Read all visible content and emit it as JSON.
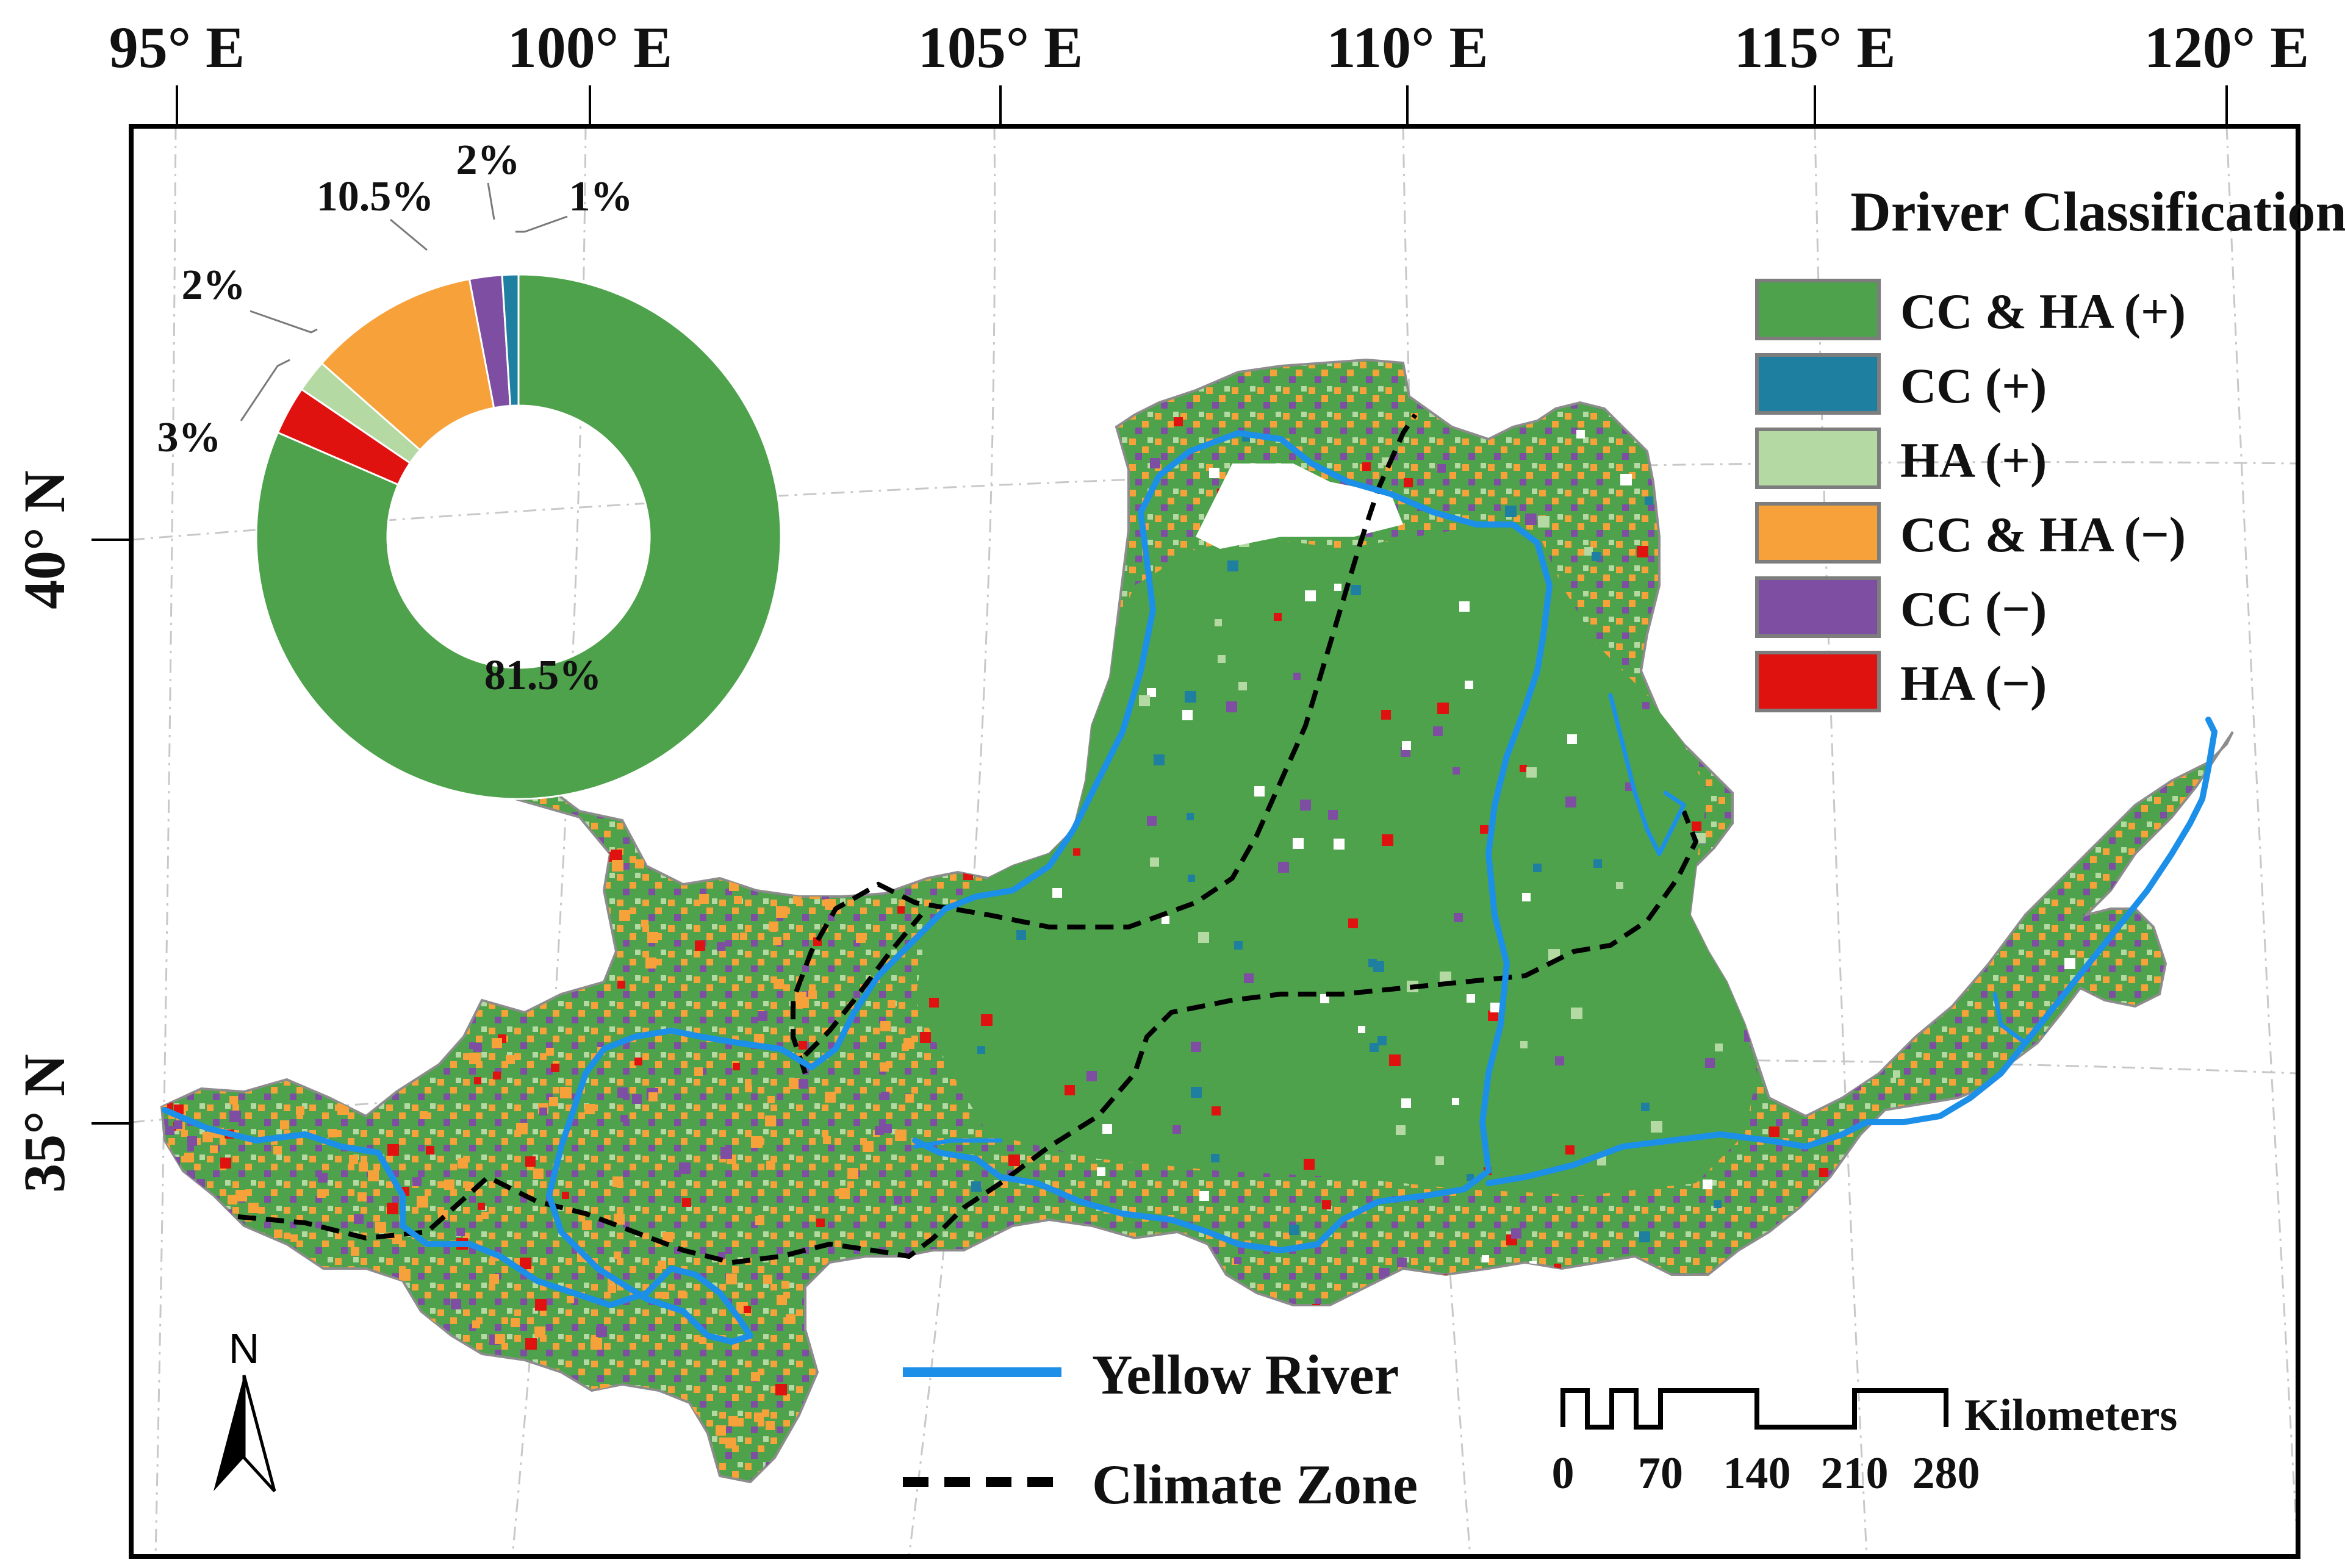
{
  "axes": {
    "lon_labels": [
      "95° E",
      "100° E",
      "105° E",
      "110° E",
      "115° E",
      "120° E"
    ],
    "lat_labels": [
      "40° N",
      "35° N"
    ]
  },
  "pie": {
    "slices": [
      {
        "category": "CC & HA (+)",
        "value": 81.5,
        "label": "81.5%",
        "color": "#4ea24b"
      },
      {
        "category": "HA (−)",
        "value": 3,
        "label": "3%",
        "color": "#e0120f"
      },
      {
        "category": "HA (+)",
        "value": 2,
        "label": "2%",
        "color": "#b5d9a2"
      },
      {
        "category": "CC & HA (−)",
        "value": 10.5,
        "label": "10.5%",
        "color": "#f7a13a"
      },
      {
        "category": "CC (−)",
        "value": 2,
        "label": "2%",
        "color": "#7e4ea3"
      },
      {
        "category": "CC (+)",
        "value": 1,
        "label": "1%",
        "color": "#1f7fa0"
      }
    ]
  },
  "legend": {
    "title": "Driver Classification",
    "items": [
      {
        "label": "CC & HA (+)",
        "color": "#4ea24b"
      },
      {
        "label": "CC (+)",
        "color": "#1f7fa0"
      },
      {
        "label": "HA (+)",
        "color": "#b5d9a2"
      },
      {
        "label": "CC & HA (−)",
        "color": "#f7a13a"
      },
      {
        "label": "CC (−)",
        "color": "#7e4ea3"
      },
      {
        "label": "HA (−)",
        "color": "#e0120f"
      }
    ]
  },
  "line_legend": {
    "river_label": "Yellow River",
    "river_color": "#1c8fe8",
    "climate_label": "Climate Zone",
    "climate_color": "#000000"
  },
  "north_arrow": {
    "label": "N"
  },
  "scale_bar": {
    "unit": "Kilometers",
    "ticks": [
      "0",
      "70",
      "140",
      "210",
      "280"
    ]
  },
  "colors": {
    "basin_fill": "#4ea24b",
    "basin_outline": "#8c8c8c",
    "graticule": "#c8c8c8"
  }
}
